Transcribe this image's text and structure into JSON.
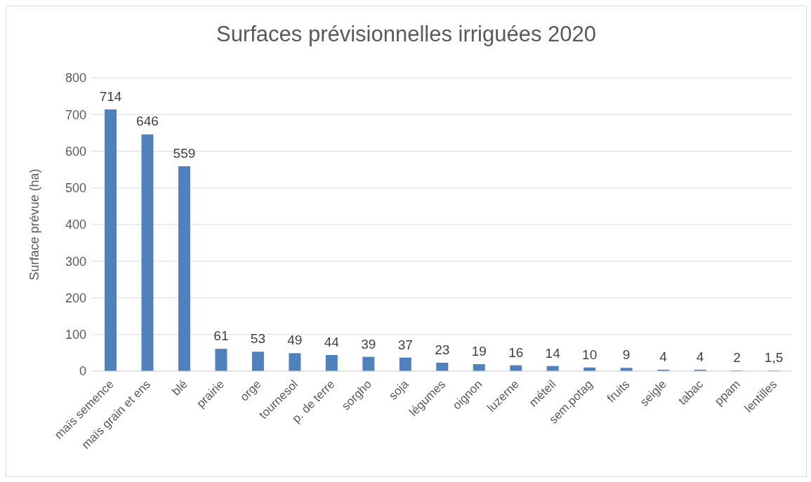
{
  "chart_data": {
    "type": "bar",
    "title": "Surfaces prévisionnelles irriguées 2020",
    "ylabel": "Surface prévue (ha)",
    "categories": [
      "maïs semence",
      "maïs grain et ens",
      "blé",
      "prairie",
      "orge",
      "tournesol",
      "p. de terre",
      "sorgho",
      "soja",
      "légumes",
      "oignon",
      "luzerne",
      "méteil",
      "sem.potag",
      "fruits",
      "seigle",
      "tabac",
      "ppam",
      "lentilles"
    ],
    "values": [
      714,
      646,
      559,
      61,
      53,
      49,
      44,
      39,
      37,
      23,
      19,
      16,
      14,
      10,
      9,
      4,
      4,
      2,
      1.5
    ],
    "value_labels": [
      "714",
      "646",
      "559",
      "61",
      "53",
      "49",
      "44",
      "39",
      "37",
      "23",
      "19",
      "16",
      "14",
      "10",
      "9",
      "4",
      "4",
      "2",
      "1,5"
    ],
    "color": "#4f81bd",
    "ylim": [
      0,
      800
    ],
    "yticks": [
      0,
      100,
      200,
      300,
      400,
      500,
      600,
      700,
      800
    ],
    "grid": "y"
  }
}
